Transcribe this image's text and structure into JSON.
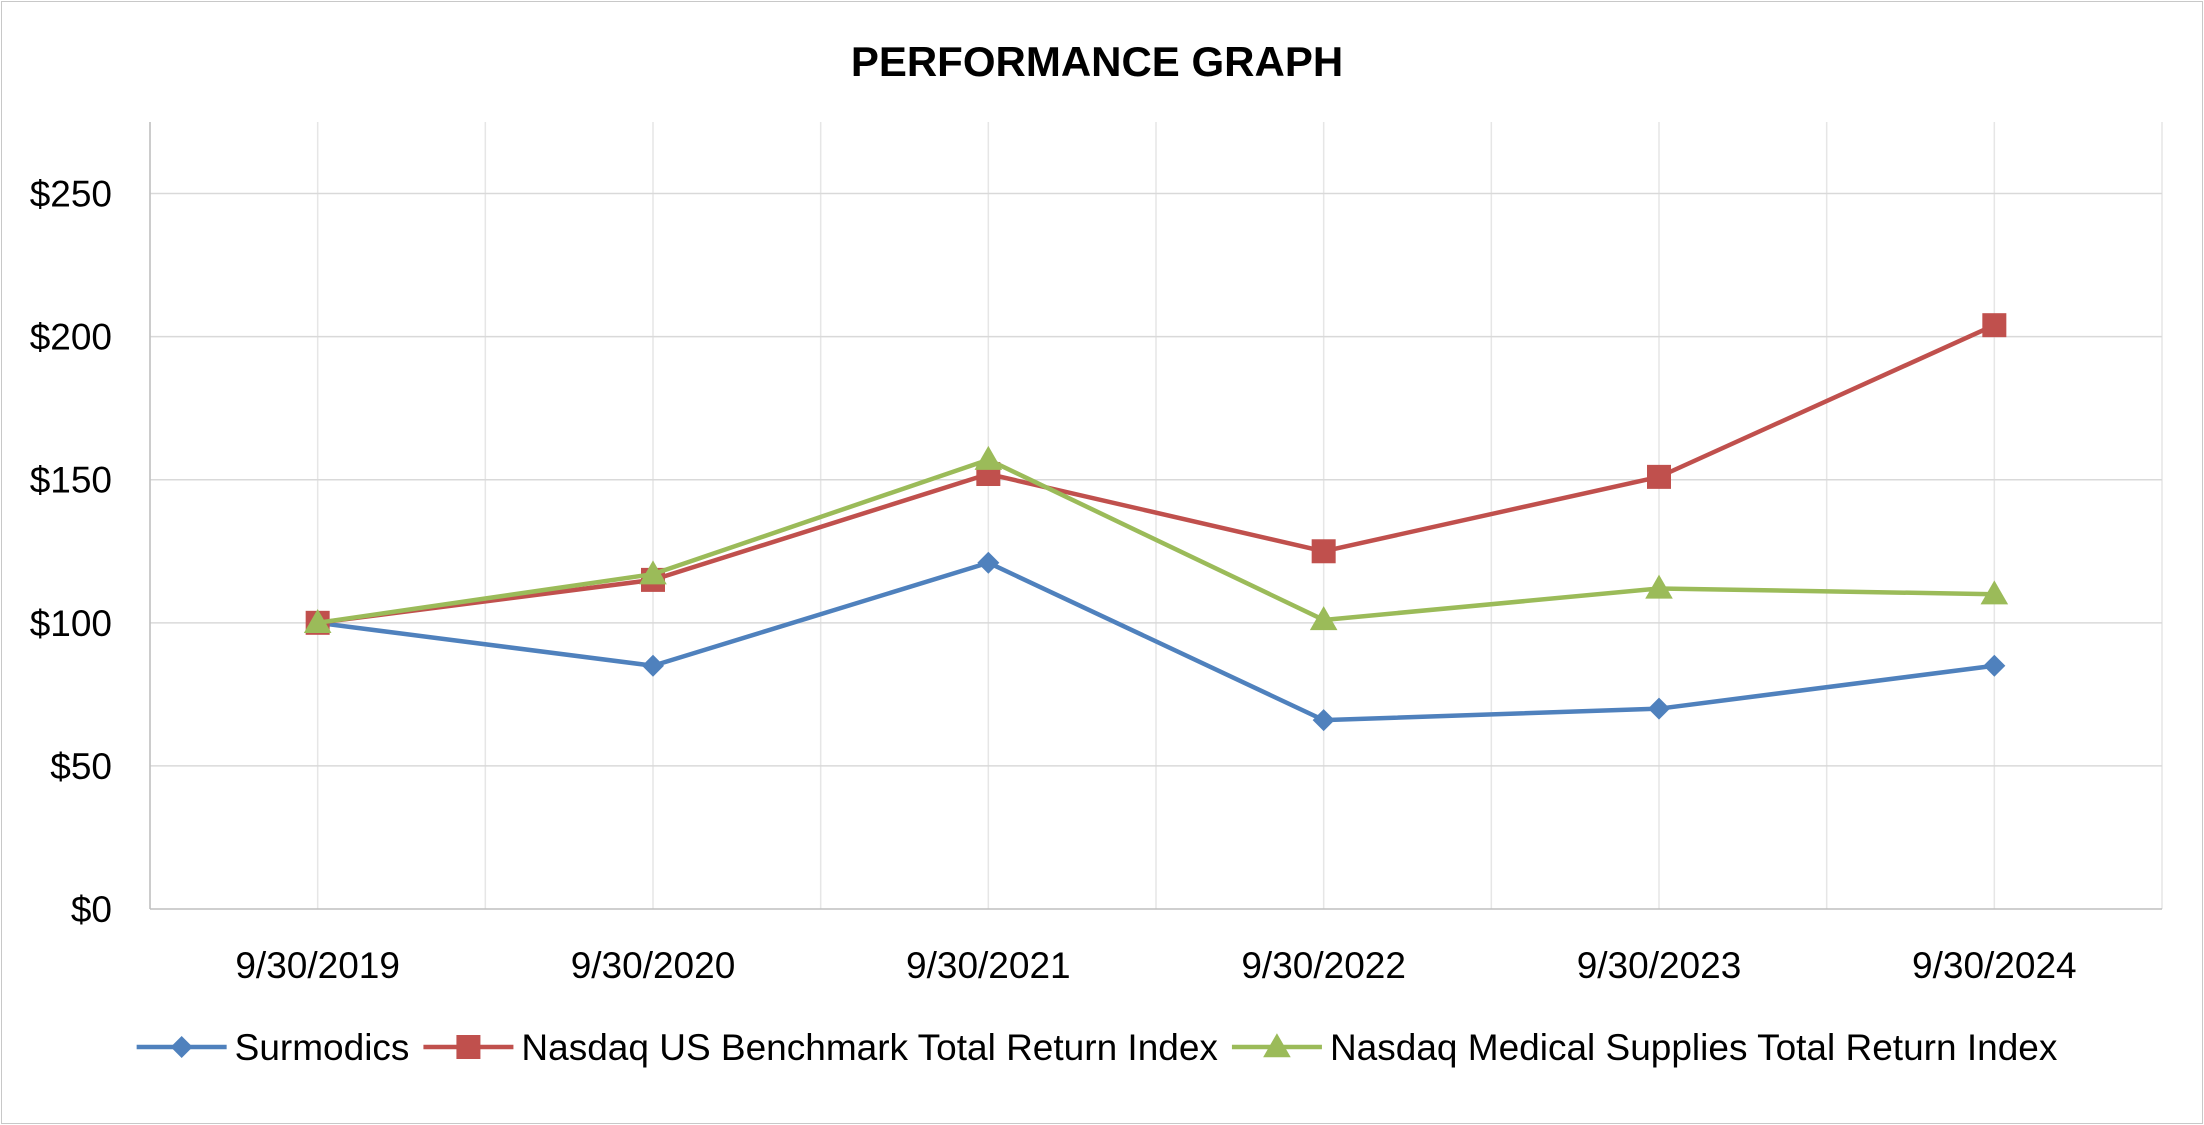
{
  "chart_data": {
    "type": "line",
    "title": "PERFORMANCE GRAPH",
    "xlabel": "",
    "ylabel": "",
    "categories": [
      "9/30/2019",
      "9/30/2020",
      "9/30/2021",
      "9/30/2022",
      "9/30/2023",
      "9/30/2024"
    ],
    "ylim": [
      0,
      275
    ],
    "yticks": [
      0,
      50,
      100,
      150,
      200,
      250
    ],
    "ytick_labels": [
      "$0",
      "$50",
      "$100",
      "$150",
      "$200",
      "$250"
    ],
    "grid": true,
    "legend_position": "bottom",
    "series": [
      {
        "name": "Surmodics",
        "color": "#4f81bd",
        "marker": "diamond",
        "values": [
          100,
          85,
          121,
          66,
          70,
          85
        ]
      },
      {
        "name": "Nasdaq US Benchmark Total Return Index",
        "color": "#c0504d",
        "marker": "square",
        "values": [
          100,
          115,
          152,
          125,
          151,
          204
        ]
      },
      {
        "name": "Nasdaq Medical Supplies Total Return Index",
        "color": "#9bbb59",
        "marker": "triangle",
        "values": [
          100,
          117,
          157,
          101,
          112,
          110
        ]
      }
    ]
  }
}
